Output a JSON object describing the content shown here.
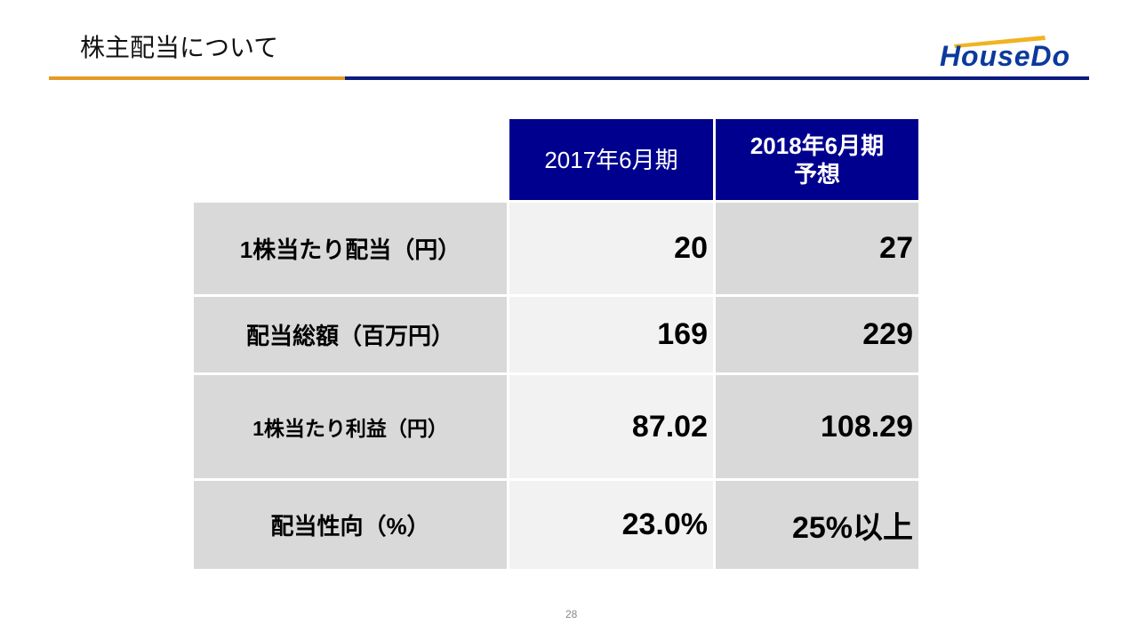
{
  "title": "株主配当について",
  "logo": {
    "text": "HouseDo",
    "brand_color": "#0b3a9c",
    "accent": "#f0b323"
  },
  "table": {
    "headers": [
      "2017年6月期",
      "2018年6月期\n予想"
    ],
    "rows": [
      {
        "label": "1株当たり配当（円）",
        "v2017": "20",
        "v2018": "27"
      },
      {
        "label": "配当総額（百万円）",
        "v2017": "169",
        "v2018": "229"
      },
      {
        "label": "1株当たり利益（円）",
        "v2017": "87.02",
        "v2018": "108.29"
      },
      {
        "label": "配当性向（%）",
        "v2017": "23.0%",
        "v2018": "25%以上"
      }
    ]
  },
  "page_number": "28"
}
